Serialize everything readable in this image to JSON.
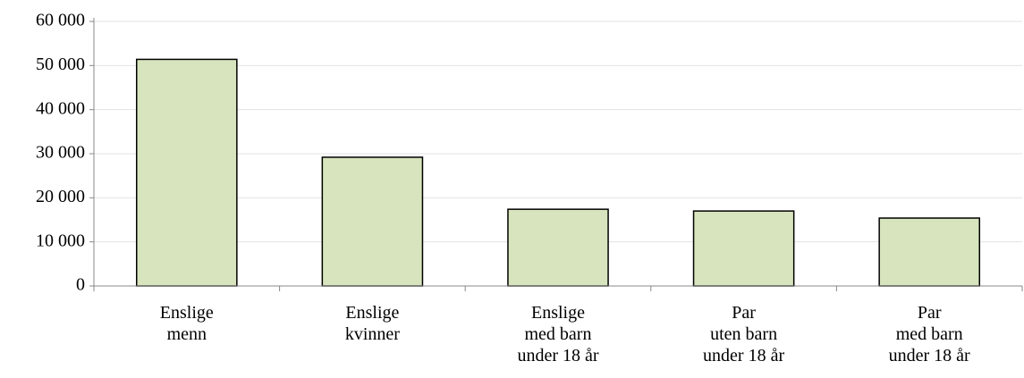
{
  "chart_data": {
    "type": "bar",
    "categories": [
      "Enslige\nmenn",
      "Enslige\nkvinner",
      "Enslige\nmed barn\nunder 18 år",
      "Par\nuten barn\nunder 18 år",
      "Par\nmed barn\nunder 18 år"
    ],
    "values": [
      51400,
      29200,
      17400,
      17000,
      15400
    ],
    "color": "#d7e4bd",
    "ylim": [
      0,
      60000
    ],
    "yticks": [
      0,
      {
        "value": 10000,
        "label": "10 000"
      },
      {
        "value": 20000,
        "label": "20 000"
      },
      {
        "value": 30000,
        "label": "30 000"
      },
      {
        "value": 40000,
        "label": "40 000"
      },
      {
        "value": 50000,
        "label": "50 000"
      },
      {
        "value": 60000,
        "label": "60 000"
      }
    ],
    "grid": true
  }
}
